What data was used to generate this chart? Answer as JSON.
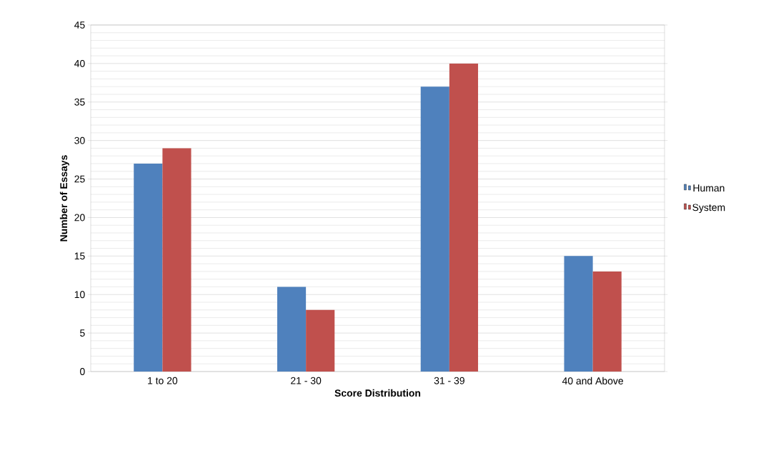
{
  "chart_data": {
    "type": "bar",
    "xlabel": "Score Distribution",
    "ylabel": "Number of Essays",
    "categories": [
      "1 to 20",
      "21 - 30",
      "31 - 39",
      "40 and Above"
    ],
    "series": [
      {
        "name": "Human",
        "color": "#4f81bd",
        "values": [
          27,
          11,
          37,
          15
        ]
      },
      {
        "name": "System",
        "color": "#c0504d",
        "values": [
          29,
          8,
          40,
          13
        ]
      }
    ],
    "ylim": [
      0,
      45
    ],
    "yticks": [
      0,
      5,
      10,
      15,
      20,
      25,
      30,
      35,
      40,
      45
    ],
    "grid": "y",
    "legend": "right"
  }
}
